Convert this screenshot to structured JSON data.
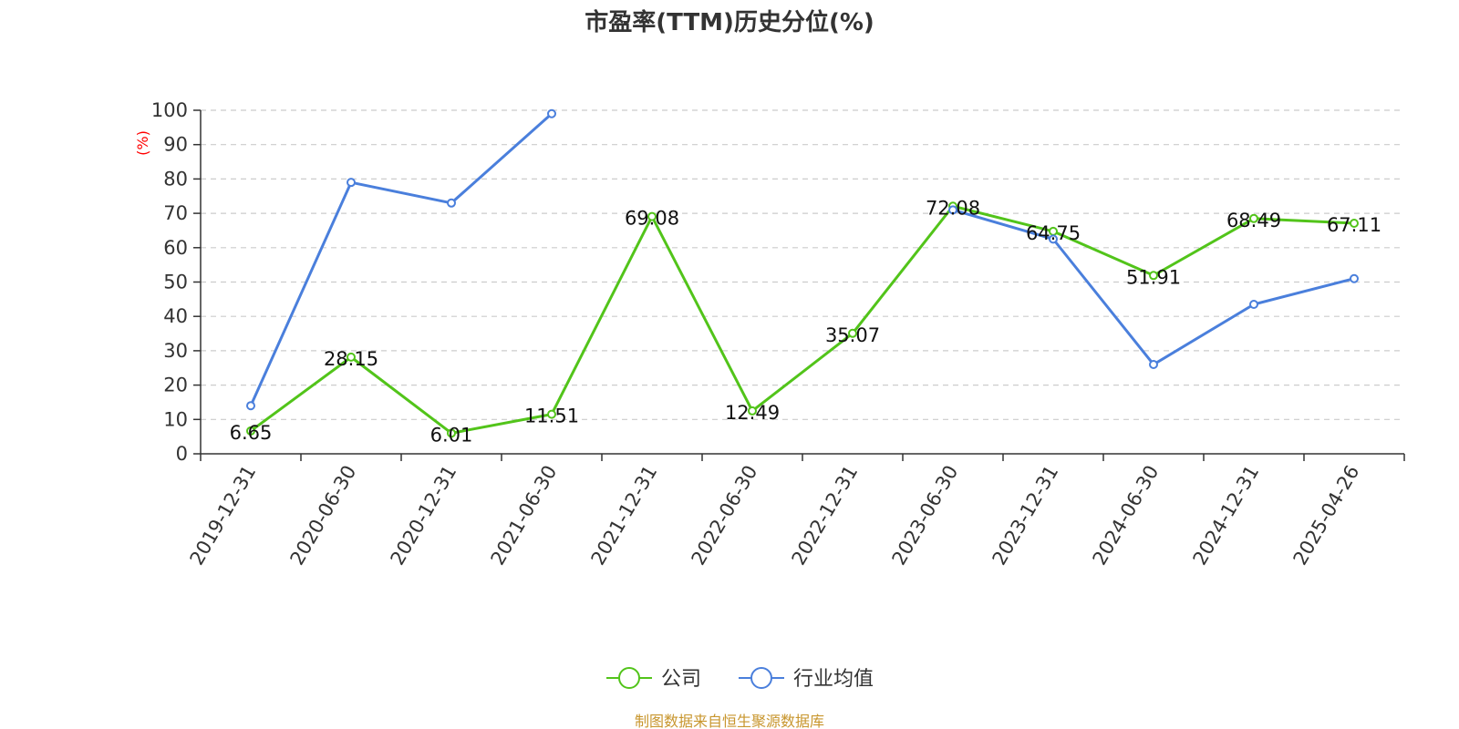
{
  "chart_data": {
    "type": "line",
    "title": "市盈率(TTM)历史分位(%)",
    "y_unit": "(%)",
    "ylim": [
      0,
      100
    ],
    "y_ticks": [
      0,
      10,
      20,
      30,
      40,
      50,
      60,
      70,
      80,
      90,
      100
    ],
    "grid": true,
    "legend_position": "bottom",
    "categories": [
      "2019-12-31",
      "2020-06-30",
      "2020-12-31",
      "2021-06-30",
      "2021-12-31",
      "2022-06-30",
      "2022-12-31",
      "2023-06-30",
      "2023-12-31",
      "2024-06-30",
      "2024-12-31",
      "2025-04-26"
    ],
    "series": [
      {
        "name": "公司",
        "color": "#52c41a",
        "values": [
          6.65,
          28.15,
          6.01,
          11.51,
          69.08,
          12.49,
          35.07,
          72.08,
          64.75,
          51.91,
          68.49,
          67.11
        ],
        "labels": [
          "6.65",
          "28.15",
          "6.01",
          "11.51",
          "69.08",
          "12.49",
          "35.07",
          "72.08",
          "64.75",
          "51.91",
          "68.49",
          "67.11"
        ]
      },
      {
        "name": "行业均值",
        "color": "#4a7fdc",
        "values": [
          14,
          79,
          73,
          99,
          null,
          null,
          null,
          71,
          62.5,
          26,
          43.5,
          51
        ]
      }
    ],
    "source": "制图数据来自恒生聚源数据库"
  }
}
